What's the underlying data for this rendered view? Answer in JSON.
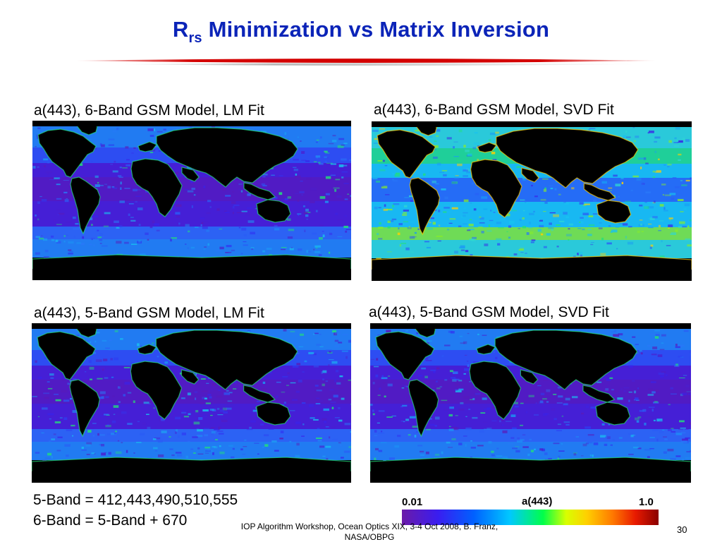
{
  "slide": {
    "title_main": "R",
    "title_subscript": "rs",
    "title_rest": " Minimization vs Matrix Inversion",
    "panels": [
      {
        "caption": "a(443), 6-Band GSM Model, LM Fit",
        "palette": "low"
      },
      {
        "caption": "a(443), 6-Band GSM Model, SVD Fit",
        "palette": "high"
      },
      {
        "caption": "a(443), 5-Band GSM Model, LM Fit",
        "palette": "low"
      },
      {
        "caption": "a(443), 5-Band GSM Model, SVD Fit",
        "palette": "low"
      }
    ],
    "notes": {
      "line1": "5-Band = 412,443,490,510,555",
      "line2": "6-Band = 5-Band + 670"
    },
    "colorbar": {
      "min_label": "0.01",
      "max_label": "1.0",
      "quantity_label": "a(443)"
    },
    "footer": "IOP Algorithm Workshop, Ocean Optics XIX, 3-4 Oct 2008, B. Franz, NASA/OBPG",
    "page_number": "30",
    "colors": {
      "title": "#0b24b8",
      "rule": "#d40000"
    }
  }
}
